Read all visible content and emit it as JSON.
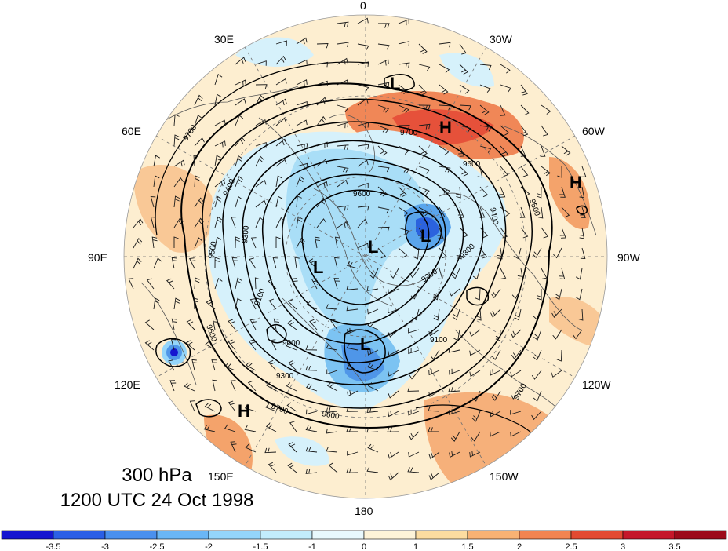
{
  "title": {
    "level": "300 hPa",
    "datetime": "1200 UTC 24 Oct 1998"
  },
  "longitude_labels": [
    {
      "id": "lon-0",
      "text": "0"
    },
    {
      "id": "lon-30w",
      "text": "30W"
    },
    {
      "id": "lon-60w",
      "text": "60W"
    },
    {
      "id": "lon-90w",
      "text": "90W"
    },
    {
      "id": "lon-120w",
      "text": "120W"
    },
    {
      "id": "lon-150w",
      "text": "150W"
    },
    {
      "id": "lon-180",
      "text": "180"
    },
    {
      "id": "lon-150e",
      "text": "150E"
    },
    {
      "id": "lon-120e",
      "text": "120E"
    },
    {
      "id": "lon-90e",
      "text": "90E"
    },
    {
      "id": "lon-60e",
      "text": "60E"
    },
    {
      "id": "lon-30e",
      "text": "30E"
    }
  ],
  "pressure_centers": [
    "L",
    "L",
    "L",
    "L",
    "L",
    "H",
    "H",
    "H"
  ],
  "contour_labels": [
    "9700",
    "9600",
    "9500",
    "9400",
    "9300",
    "9200",
    "9100",
    "9000"
  ],
  "colorbar": {
    "labels": [
      "-3.5",
      "-3",
      "-2.5",
      "-2",
      "-1.5",
      "-1",
      "0",
      "1",
      "1.5",
      "2",
      "2.5",
      "3",
      "3.5"
    ],
    "colors": [
      "#1515d0",
      "#2b5fe6",
      "#4a90ee",
      "#6ab6f5",
      "#94d5fa",
      "#c2ecfc",
      "#e8f8fd",
      "#fdf3d8",
      "#fcdca0",
      "#f8b274",
      "#f18451",
      "#e34a32",
      "#c5182a",
      "#9c0b1a"
    ]
  },
  "colors": {
    "contour": "#000000",
    "barb": "#1a1a1a",
    "coast": "#555555",
    "grid": "#707070"
  }
}
